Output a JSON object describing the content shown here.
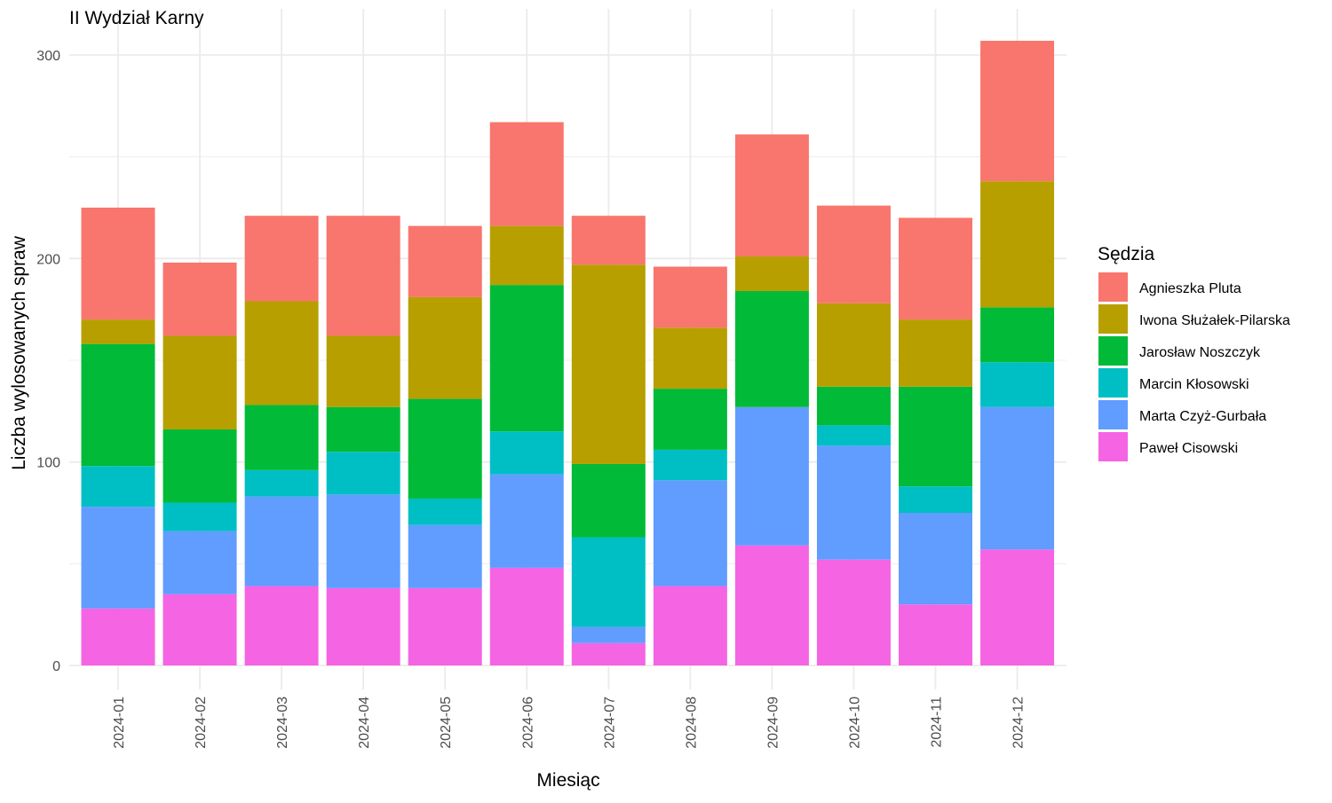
{
  "chart_data": {
    "type": "bar",
    "stacked": true,
    "title": "II Wydział Karny",
    "xlabel": "Miesiąc",
    "ylabel": "Liczba wylosowanych spraw",
    "ylim": [
      0,
      320
    ],
    "yticks": [
      0,
      100,
      200,
      300
    ],
    "grid": true,
    "legend_title": "Sędzia",
    "legend_position": "right",
    "categories": [
      "2024-01",
      "2024-02",
      "2024-03",
      "2024-04",
      "2024-05",
      "2024-06",
      "2024-07",
      "2024-08",
      "2024-09",
      "2024-10",
      "2024-11",
      "2024-12"
    ],
    "series": [
      {
        "name": "Agnieszka Pluta",
        "color": "#F8766D",
        "values": [
          55,
          36,
          42,
          59,
          35,
          51,
          24,
          30,
          60,
          48,
          50,
          69
        ]
      },
      {
        "name": "Iwona Służałek-Pilarska",
        "color": "#B79F00",
        "values": [
          12,
          46,
          51,
          35,
          50,
          29,
          98,
          30,
          17,
          41,
          33,
          62
        ]
      },
      {
        "name": "Jarosław Noszczyk",
        "color": "#00BA38",
        "values": [
          60,
          36,
          32,
          22,
          49,
          72,
          36,
          30,
          57,
          19,
          49,
          27
        ]
      },
      {
        "name": "Marcin Kłosowski",
        "color": "#00BFC4",
        "values": [
          20,
          14,
          13,
          21,
          13,
          21,
          44,
          15,
          0,
          10,
          13,
          22
        ]
      },
      {
        "name": "Marta Czyż-Gurbała",
        "color": "#619CFF",
        "values": [
          50,
          31,
          44,
          46,
          31,
          46,
          8,
          52,
          68,
          56,
          45,
          70
        ]
      },
      {
        "name": "Paweł Cisowski",
        "color": "#F564E3",
        "values": [
          28,
          35,
          39,
          38,
          38,
          48,
          11,
          39,
          59,
          52,
          30,
          57
        ]
      }
    ]
  }
}
